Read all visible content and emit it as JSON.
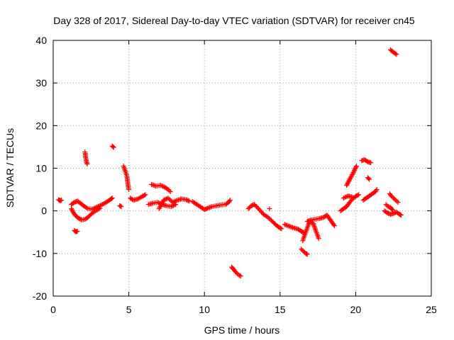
{
  "chart_data": {
    "type": "scatter",
    "title": "Day 328 of 2017, Sidereal Day-to-day VTEC variation (SDTVAR) for receiver cn45",
    "xlabel": "GPS time / hours",
    "ylabel": "SDTVAR / TECUs",
    "xlim": [
      0,
      25
    ],
    "ylim": [
      -20,
      40
    ],
    "x_ticks": [
      0,
      5,
      10,
      15,
      20,
      25
    ],
    "y_ticks": [
      -20,
      -10,
      0,
      10,
      20,
      30,
      40
    ],
    "x_tick_labels": [
      "0",
      "5",
      "10",
      "15",
      "20",
      "25"
    ],
    "y_tick_labels": [
      "-20",
      "-10",
      "0",
      "10",
      "20",
      "30",
      "40"
    ],
    "grid": true,
    "marker": "+",
    "color": "#ff0000",
    "series": [
      {
        "name": "SDTVAR",
        "segments": [
          [
            [
              0.35,
              2.6
            ],
            [
              0.45,
              2.4
            ],
            [
              0.55,
              2.5
            ]
          ],
          [
            [
              1.2,
              1.5
            ],
            [
              1.4,
              2.0
            ],
            [
              1.6,
              2.3
            ],
            [
              1.8,
              1.8
            ],
            [
              2.0,
              1.2
            ],
            [
              2.3,
              0.5
            ],
            [
              2.6,
              0.4
            ],
            [
              2.9,
              0.9
            ],
            [
              3.2,
              1.4
            ],
            [
              3.5,
              2.0
            ],
            [
              3.8,
              2.7
            ],
            [
              3.9,
              3.0
            ]
          ],
          [
            [
              1.2,
              0.5
            ],
            [
              1.35,
              -0.5
            ],
            [
              1.5,
              -1.2
            ],
            [
              1.7,
              -1.8
            ],
            [
              1.9,
              -2.1
            ],
            [
              2.1,
              -2.0
            ],
            [
              2.3,
              -1.5
            ],
            [
              2.5,
              -0.8
            ],
            [
              2.8,
              0.0
            ],
            [
              3.1,
              0.6
            ]
          ],
          [
            [
              1.4,
              -4.6
            ],
            [
              1.5,
              -4.9
            ],
            [
              1.6,
              -4.8
            ]
          ],
          [
            [
              2.1,
              13.8
            ],
            [
              2.15,
              12.5
            ],
            [
              2.2,
              11.5
            ],
            [
              2.25,
              11.0
            ]
          ],
          [
            [
              3.9,
              15.2
            ],
            [
              4.0,
              14.9
            ]
          ],
          [
            [
              4.4,
              1.2
            ],
            [
              4.5,
              1.0
            ]
          ],
          [
            [
              4.65,
              10.5
            ],
            [
              4.75,
              9.5
            ],
            [
              4.85,
              8.5
            ],
            [
              4.9,
              7.5
            ],
            [
              4.95,
              6.0
            ],
            [
              5.0,
              5.0
            ]
          ],
          [
            [
              5.1,
              3.0
            ],
            [
              5.3,
              2.5
            ],
            [
              5.6,
              2.8
            ],
            [
              5.9,
              3.4
            ],
            [
              6.1,
              3.8
            ]
          ],
          [
            [
              6.5,
              6.2
            ],
            [
              6.8,
              5.8
            ],
            [
              7.1,
              6.0
            ],
            [
              7.4,
              5.5
            ],
            [
              7.6,
              5.0
            ],
            [
              7.75,
              4.5
            ]
          ],
          [
            [
              6.3,
              1.5
            ],
            [
              6.6,
              1.8
            ],
            [
              6.9,
              2.0
            ],
            [
              7.2,
              1.5
            ],
            [
              7.5,
              1.2
            ],
            [
              7.8,
              1.0
            ],
            [
              8.1,
              1.5
            ]
          ],
          [
            [
              7.0,
              0.5
            ],
            [
              7.3,
              2.5
            ],
            [
              7.6,
              3.0
            ],
            [
              7.9,
              2.0
            ],
            [
              8.2,
              2.5
            ],
            [
              8.5,
              2.8
            ],
            [
              8.8,
              2.6
            ],
            [
              9.0,
              2.3
            ]
          ],
          [
            [
              9.2,
              2.2
            ],
            [
              9.5,
              1.5
            ],
            [
              9.8,
              0.8
            ],
            [
              10.0,
              0.3
            ],
            [
              10.2,
              0.6
            ],
            [
              10.5,
              1.0
            ],
            [
              10.8,
              1.2
            ],
            [
              11.1,
              1.4
            ],
            [
              11.4,
              1.5
            ],
            [
              11.6,
              2.0
            ],
            [
              11.7,
              2.5
            ]
          ],
          [
            [
              11.8,
              -13.2
            ],
            [
              11.95,
              -13.8
            ],
            [
              12.1,
              -14.5
            ],
            [
              12.25,
              -15.0
            ],
            [
              12.4,
              -15.3
            ]
          ],
          [
            [
              12.9,
              0.5
            ],
            [
              13.1,
              1.2
            ],
            [
              13.3,
              1.5
            ],
            [
              13.5,
              0.8
            ],
            [
              13.7,
              0.0
            ],
            [
              13.9,
              -0.8
            ],
            [
              14.2,
              -1.5
            ],
            [
              14.5,
              -2.5
            ],
            [
              14.7,
              -3.2
            ],
            [
              14.9,
              -3.8
            ],
            [
              15.1,
              -4.2
            ]
          ],
          [
            [
              14.3,
              0.5
            ]
          ],
          [
            [
              15.3,
              -3.2
            ],
            [
              15.6,
              -3.6
            ],
            [
              15.9,
              -4.0
            ],
            [
              16.2,
              -4.3
            ],
            [
              16.4,
              -4.8
            ],
            [
              16.6,
              -5.2
            ]
          ],
          [
            [
              16.4,
              -9.0
            ],
            [
              16.55,
              -9.5
            ],
            [
              16.7,
              -10.0
            ],
            [
              16.8,
              -10.2
            ]
          ],
          [
            [
              16.5,
              -7.0
            ],
            [
              16.6,
              -6.0
            ],
            [
              16.7,
              -5.0
            ],
            [
              16.8,
              -4.0
            ],
            [
              16.9,
              -3.0
            ],
            [
              17.0,
              -2.5
            ],
            [
              17.2,
              -3.0
            ],
            [
              17.35,
              -4.5
            ],
            [
              17.45,
              -5.5
            ],
            [
              17.55,
              -6.5
            ]
          ],
          [
            [
              16.8,
              -2.5
            ],
            [
              17.0,
              -2.2
            ],
            [
              17.3,
              -2.0
            ],
            [
              17.6,
              -1.8
            ],
            [
              17.9,
              -1.5
            ],
            [
              18.1,
              -1.0
            ],
            [
              18.3,
              -2.0
            ],
            [
              18.5,
              -3.0
            ],
            [
              18.6,
              -3.5
            ]
          ],
          [
            [
              19.0,
              0.0
            ],
            [
              19.2,
              0.5
            ],
            [
              19.4,
              1.0
            ],
            [
              19.6,
              2.0
            ],
            [
              19.8,
              2.8
            ],
            [
              20.0,
              3.4
            ],
            [
              20.2,
              3.8
            ]
          ],
          [
            [
              19.4,
              6.0
            ],
            [
              19.55,
              7.0
            ],
            [
              19.7,
              8.0
            ],
            [
              19.85,
              9.0
            ],
            [
              19.95,
              9.8
            ],
            [
              20.05,
              10.5
            ]
          ],
          [
            [
              19.2,
              3.0
            ],
            [
              19.5,
              3.5
            ],
            [
              19.8,
              3.2
            ]
          ],
          [
            [
              20.4,
              11.8
            ],
            [
              20.6,
              12.0
            ],
            [
              20.8,
              11.5
            ],
            [
              21.0,
              11.3
            ]
          ],
          [
            [
              20.5,
              2.5
            ],
            [
              20.7,
              3.0
            ],
            [
              20.9,
              3.5
            ],
            [
              21.1,
              4.0
            ],
            [
              21.3,
              4.5
            ],
            [
              21.4,
              5.0
            ]
          ],
          [
            [
              20.8,
              7.8
            ],
            [
              20.9,
              7.4
            ]
          ],
          [
            [
              21.9,
              0.0
            ],
            [
              22.1,
              -0.5
            ],
            [
              22.3,
              -0.8
            ],
            [
              22.5,
              -0.6
            ],
            [
              22.7,
              -0.3
            ],
            [
              22.9,
              -0.8
            ],
            [
              23.0,
              -1.0
            ]
          ],
          [
            [
              22.0,
              1.5
            ],
            [
              22.15,
              1.0
            ],
            [
              22.3,
              0.8
            ],
            [
              22.45,
              0.2
            ]
          ],
          [
            [
              22.25,
              4.0
            ],
            [
              22.35,
              3.5
            ],
            [
              22.5,
              3.0
            ],
            [
              22.65,
              2.5
            ],
            [
              22.8,
              2.0
            ]
          ],
          [
            [
              22.3,
              37.8
            ],
            [
              22.5,
              37.2
            ],
            [
              22.7,
              36.7
            ]
          ]
        ]
      }
    ]
  }
}
